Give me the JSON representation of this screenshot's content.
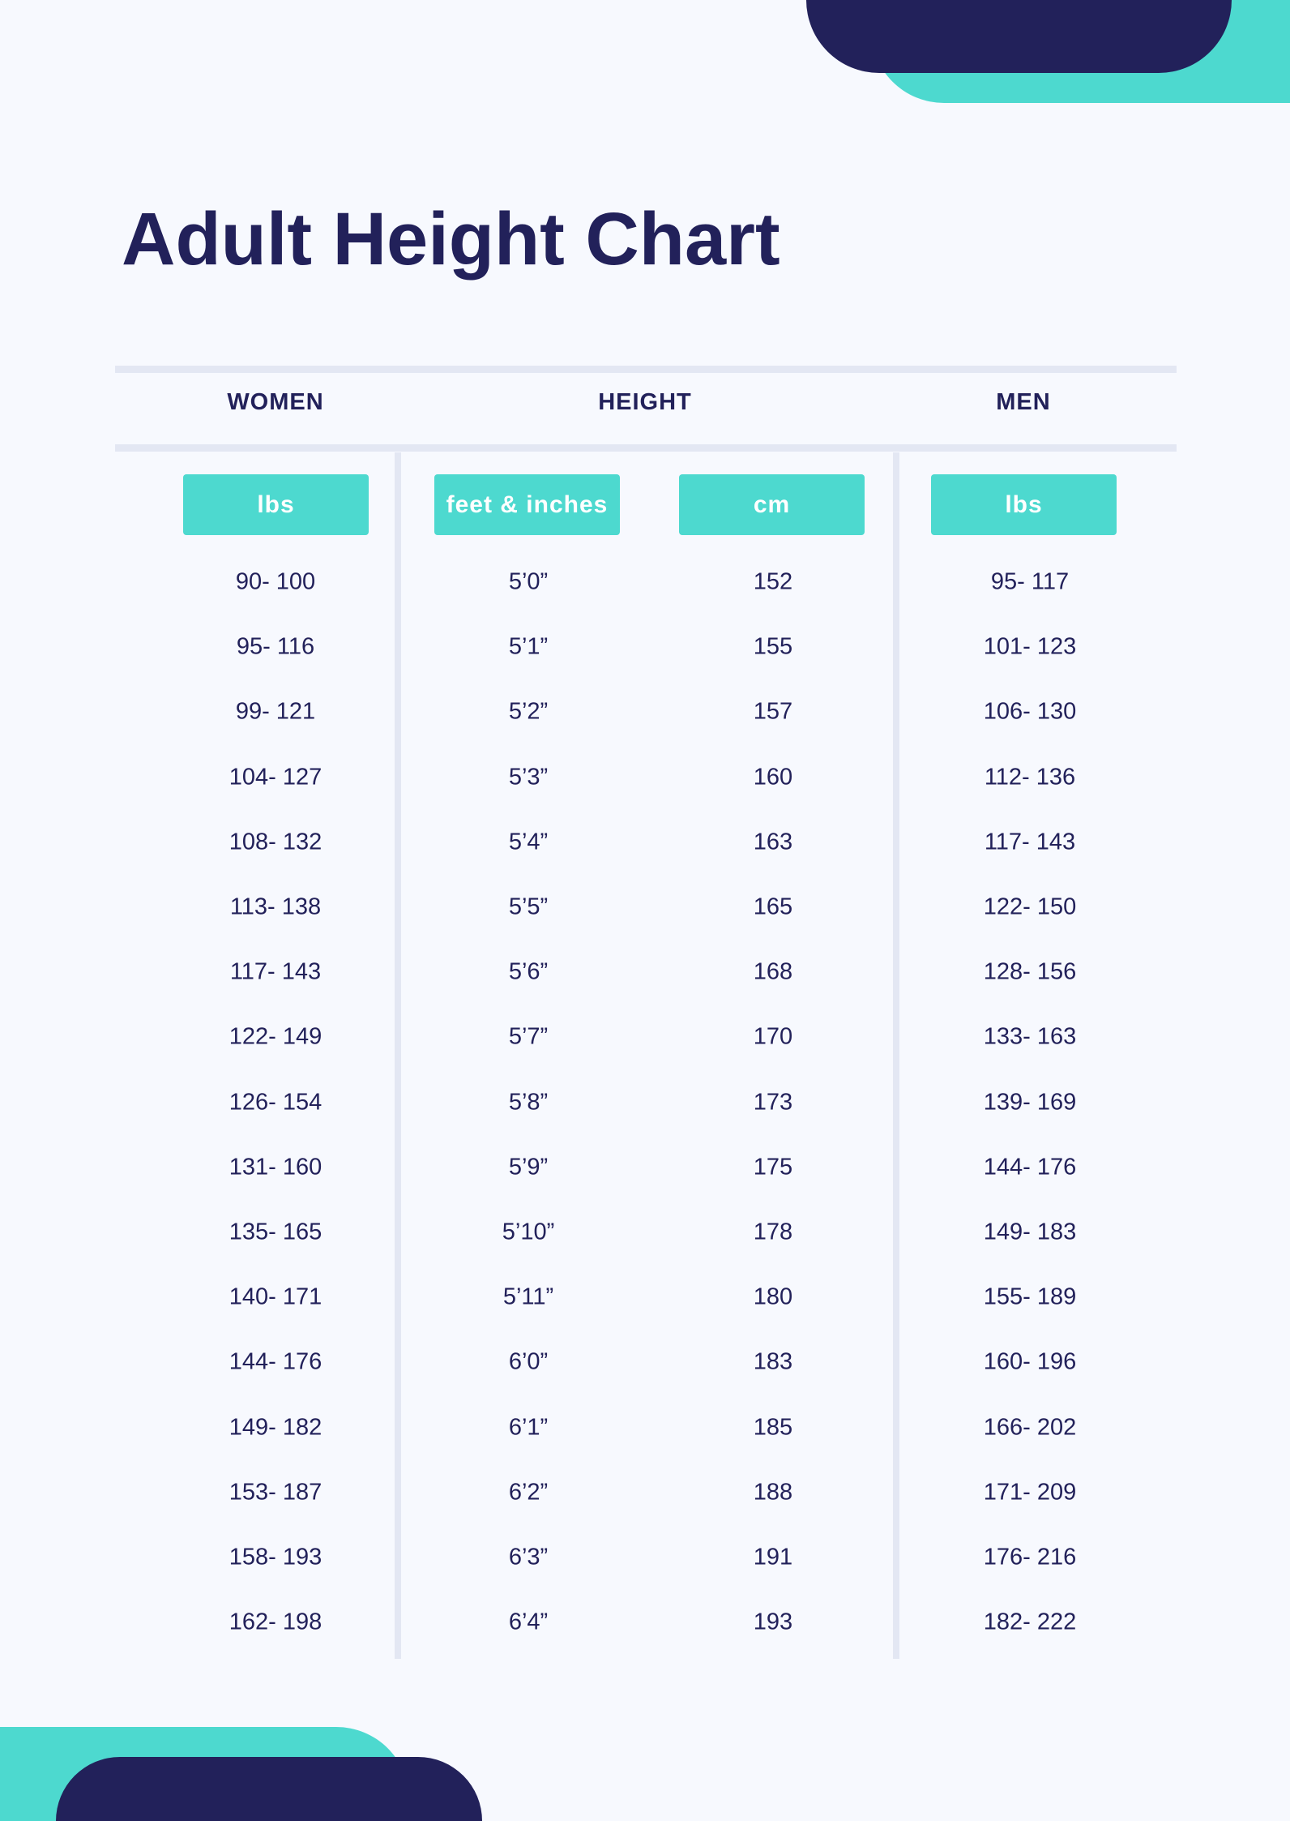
{
  "title": "Adult Height Chart",
  "colors": {
    "background": "#f7f9fe",
    "navy": "#22215a",
    "teal": "#4dd9cf",
    "rule": "#e3e7f3"
  },
  "groups": {
    "women": "WOMEN",
    "height": "HEIGHT",
    "men": "MEN"
  },
  "units": {
    "women": "lbs",
    "feet": "feet & inches",
    "cm": "cm",
    "men": "lbs"
  },
  "rows": [
    {
      "women": "90- 100",
      "feet": "5’0”",
      "cm": "152",
      "men": "95- 117"
    },
    {
      "women": "95- 116",
      "feet": "5’1”",
      "cm": "155",
      "men": "101- 123"
    },
    {
      "women": "99- 121",
      "feet": "5’2”",
      "cm": "157",
      "men": "106- 130"
    },
    {
      "women": "104- 127",
      "feet": "5’3”",
      "cm": "160",
      "men": "112- 136"
    },
    {
      "women": "108- 132",
      "feet": "5’4”",
      "cm": "163",
      "men": "117- 143"
    },
    {
      "women": "113- 138",
      "feet": "5’5”",
      "cm": "165",
      "men": "122- 150"
    },
    {
      "women": "117- 143",
      "feet": "5’6”",
      "cm": "168",
      "men": "128- 156"
    },
    {
      "women": "122- 149",
      "feet": "5’7”",
      "cm": "170",
      "men": "133- 163"
    },
    {
      "women": "126- 154",
      "feet": "5’8”",
      "cm": "173",
      "men": "139- 169"
    },
    {
      "women": "131- 160",
      "feet": "5’9”",
      "cm": "175",
      "men": "144- 176"
    },
    {
      "women": "135- 165",
      "feet": "5’10”",
      "cm": "178",
      "men": "149- 183"
    },
    {
      "women": "140- 171",
      "feet": "5’11”",
      "cm": "180",
      "men": "155- 189"
    },
    {
      "women": "144- 176",
      "feet": "6’0”",
      "cm": "183",
      "men": "160- 196"
    },
    {
      "women": "149- 182",
      "feet": "6’1”",
      "cm": "185",
      "men": "166- 202"
    },
    {
      "women": "153- 187",
      "feet": "6’2”",
      "cm": "188",
      "men": "171- 209"
    },
    {
      "women": "158- 193",
      "feet": "6’3”",
      "cm": "191",
      "men": "176- 216"
    },
    {
      "women": "162- 198",
      "feet": "6’4”",
      "cm": "193",
      "men": "182- 222"
    }
  ]
}
